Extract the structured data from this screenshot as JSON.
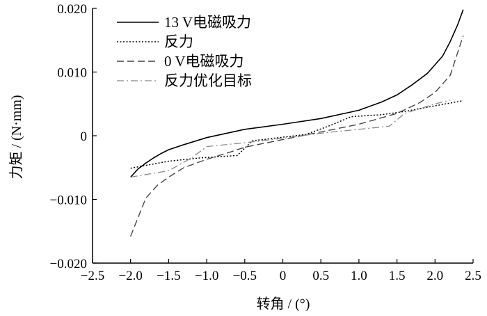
{
  "chart_data": {
    "type": "line",
    "xlabel": "转角 / (°)",
    "ylabel": "力矩 / (N·mm)",
    "xlim": [
      -2.5,
      2.5
    ],
    "ylim": [
      -0.02,
      0.02
    ],
    "x_ticks": [
      -2.5,
      -2.0,
      -1.5,
      -1.0,
      -0.5,
      0,
      0.5,
      1.0,
      1.5,
      2.0,
      2.5
    ],
    "x_tick_labels": [
      "−2.5",
      "−2.0",
      "−1.5",
      "−1.0",
      "−0.5",
      "0",
      "0.5",
      "1.0",
      "1.5",
      "2.0",
      "2.5"
    ],
    "y_ticks": [
      -0.02,
      -0.01,
      0,
      0.01,
      0.02
    ],
    "y_tick_labels": [
      "−0.020",
      "−0.010",
      "0",
      "0.010",
      "0.020"
    ],
    "grid": false,
    "legend_position": "top-left",
    "series": [
      {
        "name": "13 V电磁吸力",
        "style": "solid",
        "color": "#000000",
        "x": [
          -2.0,
          -1.9,
          -1.8,
          -1.7,
          -1.6,
          -1.5,
          -1.3,
          -1.0,
          -0.5,
          0,
          0.5,
          1.0,
          1.3,
          1.5,
          1.7,
          1.9,
          2.1,
          2.2,
          2.3,
          2.37
        ],
        "y": [
          -0.0065,
          -0.0052,
          -0.0043,
          -0.0035,
          -0.0028,
          -0.0022,
          -0.0014,
          -0.0003,
          0.001,
          0.0018,
          0.0027,
          0.004,
          0.0053,
          0.0064,
          0.008,
          0.0098,
          0.0125,
          0.0148,
          0.0175,
          0.0198
        ]
      },
      {
        "name": "反力",
        "style": "dotted",
        "color": "#000000",
        "x": [
          -2.0,
          -1.5,
          -1.1,
          -0.6,
          -0.4,
          0.3,
          0.6,
          0.9,
          1.3,
          1.6,
          2.0,
          2.37
        ],
        "y": [
          -0.0051,
          -0.004,
          -0.0035,
          -0.0031,
          -0.0008,
          0.0002,
          0.0015,
          0.003,
          0.0033,
          0.0038,
          0.0047,
          0.0055
        ]
      },
      {
        "name": "0 V电磁吸力",
        "style": "dashed",
        "color": "#444444",
        "x": [
          -2.0,
          -1.9,
          -1.8,
          -1.65,
          -1.5,
          -1.3,
          -1.0,
          -0.7,
          -0.5,
          0,
          0.5,
          1.0,
          1.5,
          1.8,
          2.0,
          2.2,
          2.37
        ],
        "y": [
          -0.0158,
          -0.0128,
          -0.0098,
          -0.0078,
          -0.0065,
          -0.005,
          -0.0037,
          -0.0026,
          -0.0018,
          -0.0006,
          0.0006,
          0.0018,
          0.0035,
          0.0052,
          0.0068,
          0.0095,
          0.0157
        ]
      },
      {
        "name": "反力优化目标",
        "style": "dashdot",
        "color": "#888888",
        "x": [
          -2.0,
          -1.5,
          -1.2,
          -1.0,
          -0.5,
          0,
          0.5,
          1.0,
          1.4,
          1.6,
          2.0,
          2.2
        ],
        "y": [
          -0.0065,
          -0.0055,
          -0.0035,
          -0.0017,
          -0.0011,
          -0.0004,
          0.0004,
          0.001,
          0.0015,
          0.0035,
          0.005,
          0.0056
        ]
      }
    ]
  }
}
